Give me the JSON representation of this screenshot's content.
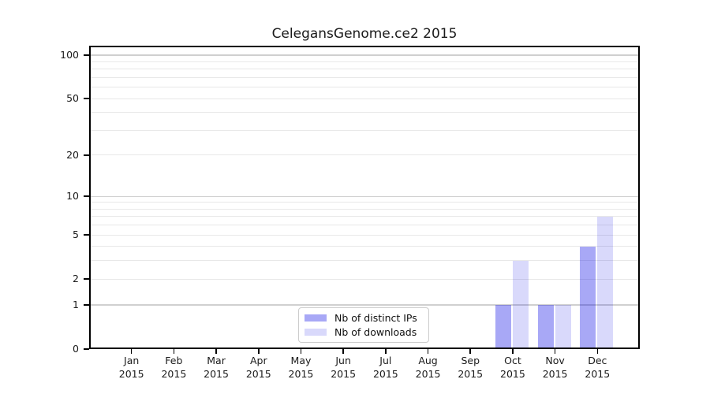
{
  "chart_data": {
    "type": "bar",
    "title": "CelegansGenome.ce2 2015",
    "categories": [
      "Jan 2015",
      "Feb 2015",
      "Mar 2015",
      "Apr 2015",
      "May 2015",
      "Jun 2015",
      "Jul 2015",
      "Aug 2015",
      "Sep 2015",
      "Oct 2015",
      "Nov 2015",
      "Dec 2015"
    ],
    "x_tick_line1": [
      "Jan",
      "Feb",
      "Mar",
      "Apr",
      "May",
      "Jun",
      "Jul",
      "Aug",
      "Sep",
      "Oct",
      "Nov",
      "Dec"
    ],
    "x_tick_line2": [
      "2015",
      "2015",
      "2015",
      "2015",
      "2015",
      "2015",
      "2015",
      "2015",
      "2015",
      "2015",
      "2015",
      "2015"
    ],
    "series": [
      {
        "name": "Nb of distinct IPs",
        "values": [
          0,
          0,
          0,
          0,
          0,
          0,
          0,
          0,
          0,
          1,
          1,
          4
        ],
        "css_color": "rgba(0,0,230,0.34)",
        "approx_hex_on_white": "#a8a8f6"
      },
      {
        "name": "Nb of downloads",
        "values": [
          0,
          0,
          0,
          0,
          0,
          0,
          0,
          0,
          0,
          3,
          1,
          7
        ],
        "css_color": "rgba(0,0,230,0.15)",
        "approx_hex_on_white": "#d9d9fb"
      }
    ],
    "xlabel": "",
    "ylabel": "",
    "y_axis": {
      "scale": "log1p",
      "range": [
        0,
        100
      ],
      "tick_values": [
        0,
        1,
        2,
        5,
        10,
        20,
        50,
        100
      ],
      "tick_labels": [
        "0",
        "1",
        "2",
        "5",
        "10",
        "20",
        "50",
        "100"
      ],
      "major_grid_values": [
        1,
        10,
        100
      ],
      "minor_grid_values": [
        2,
        3,
        4,
        5,
        6,
        7,
        8,
        9,
        20,
        30,
        40,
        50,
        60,
        70,
        80,
        90
      ]
    },
    "grid": true,
    "legend": {
      "position": "inside lower-center",
      "entries": [
        "Nb of distinct IPs",
        "Nb of downloads"
      ]
    },
    "colors": {
      "major_grid": "#d0d0d0",
      "minor_grid": "#e8e8e8",
      "spine": "#000000",
      "text": "#1a1a1a",
      "legend_border": "#cccccc",
      "legend_bg": "#ffffff"
    }
  }
}
